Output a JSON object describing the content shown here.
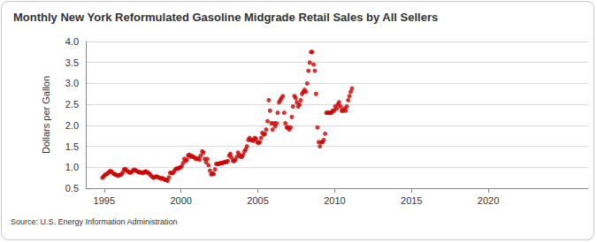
{
  "chart_data": {
    "type": "scatter",
    "title": "Monthly New York Reformulated Gasoline Midgrade Retail Sales by All Sellers",
    "y_label": "Dollars per Gallon",
    "source": "Source: U.S. Energy Information Administration",
    "color": "#cc0000",
    "marker": "circle",
    "grid": true,
    "xlim": [
      1993.8,
      2026.5
    ],
    "xticks": [
      1995,
      2000,
      2005,
      2010,
      2015,
      2020
    ],
    "ylim": [
      0.5,
      4.0
    ],
    "yticks": [
      0.5,
      {
        "value": 1,
        "label": "1.0"
      },
      1.5,
      {
        "value": 2,
        "label": "2.0"
      },
      2.5,
      {
        "value": 3,
        "label": "3.0"
      },
      3.5,
      {
        "value": 4,
        "label": "4.0"
      }
    ],
    "x": [
      1994.88,
      1994.96,
      1995.04,
      1995.13,
      1995.21,
      1995.29,
      1995.38,
      1995.46,
      1995.54,
      1995.63,
      1995.71,
      1995.79,
      1995.88,
      1995.96,
      1996.04,
      1996.13,
      1996.21,
      1996.29,
      1996.38,
      1996.46,
      1996.54,
      1996.63,
      1996.71,
      1996.79,
      1996.88,
      1996.96,
      1997.04,
      1997.13,
      1997.21,
      1997.29,
      1997.38,
      1997.46,
      1997.54,
      1997.63,
      1997.71,
      1997.79,
      1997.88,
      1997.96,
      1998.04,
      1998.13,
      1998.21,
      1998.29,
      1998.38,
      1998.46,
      1998.54,
      1998.63,
      1998.71,
      1998.79,
      1998.88,
      1998.96,
      1999.04,
      1999.13,
      1999.21,
      1999.29,
      1999.38,
      1999.46,
      1999.54,
      1999.63,
      1999.71,
      1999.79,
      1999.88,
      1999.96,
      2000.04,
      2000.13,
      2000.21,
      2000.29,
      2000.38,
      2000.46,
      2000.54,
      2000.63,
      2000.71,
      2000.79,
      2000.88,
      2000.96,
      2001.04,
      2001.13,
      2001.21,
      2001.29,
      2001.38,
      2001.46,
      2001.54,
      2001.63,
      2001.71,
      2001.79,
      2001.88,
      2001.96,
      2002.04,
      2002.13,
      2002.21,
      2002.29,
      2002.38,
      2002.46,
      2002.54,
      2002.63,
      2002.71,
      2002.79,
      2002.88,
      2002.96,
      2003.04,
      2003.13,
      2003.21,
      2003.29,
      2003.38,
      2003.46,
      2003.54,
      2003.63,
      2003.71,
      2003.79,
      2003.88,
      2003.96,
      2004.04,
      2004.13,
      2004.21,
      2004.29,
      2004.38,
      2004.46,
      2004.54,
      2004.63,
      2004.71,
      2004.79,
      2004.88,
      2004.96,
      2005.04,
      2005.13,
      2005.21,
      2005.29,
      2005.38,
      2005.46,
      2005.54,
      2005.63,
      2005.71,
      2005.79,
      2005.88,
      2005.96,
      2006.04,
      2006.13,
      2006.21,
      2006.29,
      2006.38,
      2006.46,
      2006.54,
      2006.63,
      2006.71,
      2006.79,
      2006.88,
      2006.96,
      2007.04,
      2007.13,
      2007.21,
      2007.29,
      2007.38,
      2007.46,
      2007.54,
      2007.63,
      2007.71,
      2007.79,
      2007.88,
      2007.96,
      2008.04,
      2008.13,
      2008.21,
      2008.29,
      2008.38,
      2008.46,
      2008.54,
      2008.63,
      2008.71,
      2008.79,
      2008.88,
      2008.96,
      2009.04,
      2009.13,
      2009.21,
      2009.29,
      2009.38,
      2009.46,
      2009.54,
      2009.63,
      2009.71,
      2009.79,
      2009.88,
      2009.96,
      2010.04,
      2010.13,
      2010.21,
      2010.29,
      2010.38,
      2010.46,
      2010.54,
      2010.63,
      2010.71,
      2010.79,
      2010.88,
      2010.96,
      2011.04,
      2011.13
    ],
    "values": [
      0.75,
      0.78,
      0.82,
      0.83,
      0.85,
      0.88,
      0.91,
      0.9,
      0.87,
      0.84,
      0.83,
      0.82,
      0.8,
      0.81,
      0.82,
      0.83,
      0.88,
      0.95,
      0.96,
      0.92,
      0.9,
      0.88,
      0.87,
      0.89,
      0.93,
      0.94,
      0.93,
      0.91,
      0.89,
      0.88,
      0.88,
      0.87,
      0.86,
      0.89,
      0.9,
      0.88,
      0.86,
      0.84,
      0.8,
      0.77,
      0.75,
      0.76,
      0.78,
      0.77,
      0.76,
      0.74,
      0.73,
      0.74,
      0.72,
      0.7,
      0.7,
      0.68,
      0.76,
      0.87,
      0.86,
      0.86,
      0.9,
      0.95,
      0.97,
      0.97,
      0.98,
      1.0,
      1.02,
      1.1,
      1.2,
      1.15,
      1.18,
      1.28,
      1.3,
      1.25,
      1.27,
      1.25,
      1.23,
      1.2,
      1.2,
      1.22,
      1.18,
      1.28,
      1.38,
      1.35,
      1.2,
      1.12,
      1.2,
      1.05,
      0.92,
      0.83,
      0.85,
      0.84,
      0.95,
      1.08,
      1.08,
      1.08,
      1.1,
      1.1,
      1.1,
      1.12,
      1.13,
      1.12,
      1.15,
      1.28,
      1.32,
      1.23,
      1.15,
      1.15,
      1.18,
      1.25,
      1.35,
      1.3,
      1.25,
      1.25,
      1.3,
      1.38,
      1.43,
      1.5,
      1.65,
      1.7,
      1.65,
      1.65,
      1.63,
      1.7,
      1.68,
      1.6,
      1.58,
      1.6,
      1.7,
      1.82,
      1.78,
      1.8,
      1.9,
      2.1,
      2.6,
      2.35,
      2.05,
      1.9,
      2.05,
      1.98,
      2.05,
      2.3,
      2.55,
      2.6,
      2.65,
      2.7,
      2.3,
      2.05,
      1.95,
      1.95,
      1.9,
      1.95,
      2.2,
      2.45,
      2.7,
      2.65,
      2.55,
      2.45,
      2.5,
      2.6,
      2.75,
      2.8,
      2.85,
      2.8,
      3.0,
      3.3,
      3.5,
      3.75,
      3.75,
      3.45,
      3.3,
      2.75,
      1.95,
      1.6,
      1.5,
      1.6,
      1.6,
      1.65,
      1.8,
      2.3,
      2.3,
      2.3,
      2.3,
      2.3,
      2.35,
      2.35,
      2.45,
      2.4,
      2.5,
      2.55,
      2.45,
      2.35,
      2.35,
      2.4,
      2.35,
      2.45,
      2.6,
      2.7,
      2.8,
      2.88
    ]
  }
}
